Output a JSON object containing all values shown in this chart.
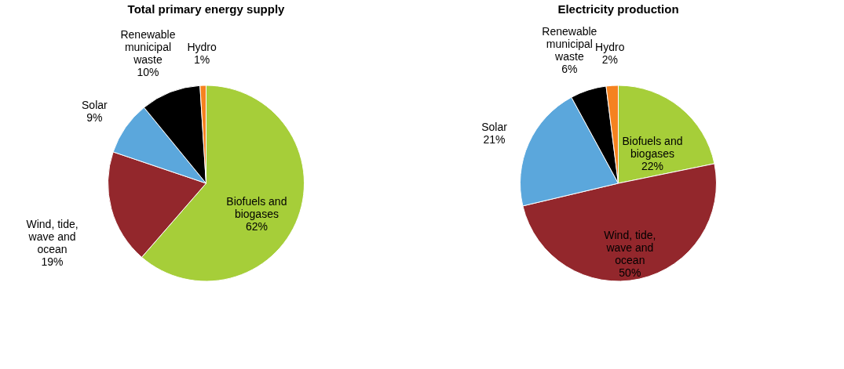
{
  "chart_data": [
    {
      "type": "pie",
      "title": "Total primary energy supply",
      "categories": [
        "Biofuels and biogases",
        "Wind, tide, wave and ocean",
        "Solar",
        "Renewable municipal waste",
        "Hydro"
      ],
      "values": [
        62,
        19,
        9,
        10,
        1
      ],
      "value_labels": [
        "62%",
        "19%",
        "9%",
        "10%",
        "1%"
      ],
      "colors": [
        "#a6ce39",
        "#93272c",
        "#5ba7dc",
        "#000000",
        "#f58220"
      ]
    },
    {
      "type": "pie",
      "title": "Electricity production",
      "categories": [
        "Biofuels and biogases",
        "Wind, tide, wave and ocean",
        "Solar",
        "Renewable municipal waste",
        "Hydro"
      ],
      "values": [
        22,
        50,
        21,
        6,
        2
      ],
      "value_labels": [
        "22%",
        "50%",
        "21%",
        "6%",
        "2%"
      ],
      "colors": [
        "#a6ce39",
        "#93272c",
        "#5ba7dc",
        "#000000",
        "#f58220"
      ]
    }
  ]
}
